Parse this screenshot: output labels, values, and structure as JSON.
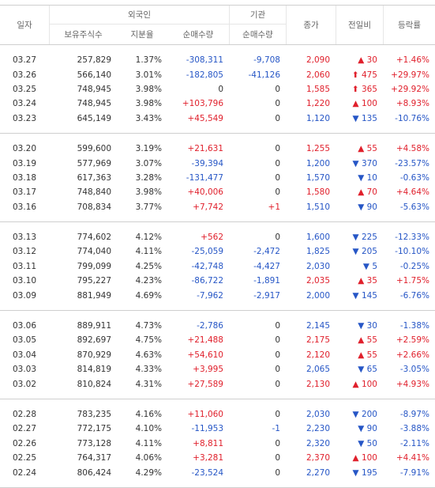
{
  "header": {
    "date": "일자",
    "foreign": "외국인",
    "institution": "기관",
    "close": "종가",
    "change": "전일비",
    "rate": "등락률",
    "holdings": "보유주식수",
    "ratio": "지분율",
    "foreign_net": "순매수량",
    "institution_net": "순매수량"
  },
  "groups": [
    [
      [
        "03.27",
        "257,829",
        "1.37%",
        "-308,311",
        "-9,708",
        "2,090",
        "▲ 30",
        "+1.46%"
      ],
      [
        "03.26",
        "566,140",
        "3.01%",
        "-182,805",
        "-41,126",
        "2,060",
        "⬆ 475",
        "+29.97%"
      ],
      [
        "03.25",
        "748,945",
        "3.98%",
        "0",
        "0",
        "1,585",
        "⬆ 365",
        "+29.92%"
      ],
      [
        "03.24",
        "748,945",
        "3.98%",
        "+103,796",
        "0",
        "1,220",
        "▲ 100",
        "+8.93%"
      ],
      [
        "03.23",
        "645,149",
        "3.43%",
        "+45,549",
        "0",
        "1,120",
        "▼ 135",
        "-10.76%"
      ]
    ],
    [
      [
        "03.20",
        "599,600",
        "3.19%",
        "+21,631",
        "0",
        "1,255",
        "▲ 55",
        "+4.58%"
      ],
      [
        "03.19",
        "577,969",
        "3.07%",
        "-39,394",
        "0",
        "1,200",
        "▼ 370",
        "-23.57%"
      ],
      [
        "03.18",
        "617,363",
        "3.28%",
        "-131,477",
        "0",
        "1,570",
        "▼ 10",
        "-0.63%"
      ],
      [
        "03.17",
        "748,840",
        "3.98%",
        "+40,006",
        "0",
        "1,580",
        "▲ 70",
        "+4.64%"
      ],
      [
        "03.16",
        "708,834",
        "3.77%",
        "+7,742",
        "+1",
        "1,510",
        "▼ 90",
        "-5.63%"
      ]
    ],
    [
      [
        "03.13",
        "774,602",
        "4.12%",
        "+562",
        "0",
        "1,600",
        "▼ 225",
        "-12.33%"
      ],
      [
        "03.12",
        "774,040",
        "4.11%",
        "-25,059",
        "-2,472",
        "1,825",
        "▼ 205",
        "-10.10%"
      ],
      [
        "03.11",
        "799,099",
        "4.25%",
        "-42,748",
        "-4,427",
        "2,030",
        "▼ 5",
        "-0.25%"
      ],
      [
        "03.10",
        "795,227",
        "4.23%",
        "-86,722",
        "-1,891",
        "2,035",
        "▲ 35",
        "+1.75%"
      ],
      [
        "03.09",
        "881,949",
        "4.69%",
        "-7,962",
        "-2,917",
        "2,000",
        "▼ 145",
        "-6.76%"
      ]
    ],
    [
      [
        "03.06",
        "889,911",
        "4.73%",
        "-2,786",
        "0",
        "2,145",
        "▼ 30",
        "-1.38%"
      ],
      [
        "03.05",
        "892,697",
        "4.75%",
        "+21,488",
        "0",
        "2,175",
        "▲ 55",
        "+2.59%"
      ],
      [
        "03.04",
        "870,929",
        "4.63%",
        "+54,610",
        "0",
        "2,120",
        "▲ 55",
        "+2.66%"
      ],
      [
        "03.03",
        "814,819",
        "4.33%",
        "+3,995",
        "0",
        "2,065",
        "▼ 65",
        "-3.05%"
      ],
      [
        "03.02",
        "810,824",
        "4.31%",
        "+27,589",
        "0",
        "2,130",
        "▲ 100",
        "+4.93%"
      ]
    ],
    [
      [
        "02.28",
        "783,235",
        "4.16%",
        "+11,060",
        "0",
        "2,030",
        "▼ 200",
        "-8.97%"
      ],
      [
        "02.27",
        "772,175",
        "4.10%",
        "-11,953",
        "-1",
        "2,230",
        "▼ 90",
        "-3.88%"
      ],
      [
        "02.26",
        "773,128",
        "4.11%",
        "+8,811",
        "0",
        "2,320",
        "▼ 50",
        "-2.11%"
      ],
      [
        "02.25",
        "764,317",
        "4.06%",
        "+3,281",
        "0",
        "2,370",
        "▲ 100",
        "+4.41%"
      ],
      [
        "02.24",
        "806,424",
        "4.29%",
        "-23,524",
        "0",
        "2,270",
        "▼ 195",
        "-7.91%"
      ]
    ]
  ]
}
